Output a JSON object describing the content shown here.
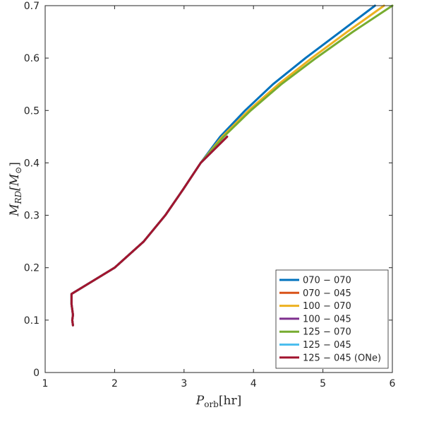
{
  "chart_data": {
    "type": "line",
    "xlabel": {
      "main": "P",
      "sub": "orb",
      "unit": "[hr]"
    },
    "ylabel": {
      "main": "M",
      "sub": "RD",
      "unit_open": "[M",
      "unit_sym": "⊙",
      "unit_close": "]"
    },
    "xlim": [
      1,
      6
    ],
    "ylim": [
      0,
      0.7
    ],
    "xticks": [
      1,
      2,
      3,
      4,
      5,
      6
    ],
    "yticks": [
      0,
      0.1,
      0.2,
      0.3,
      0.4,
      0.5,
      0.6,
      0.7
    ],
    "xtick_labels": [
      "1",
      "2",
      "3",
      "4",
      "5",
      "6"
    ],
    "ytick_labels": [
      "0",
      "0.1",
      "0.2",
      "0.3",
      "0.4",
      "0.5",
      "0.6",
      "0.7"
    ],
    "grid": false,
    "legend_position": "bottom-right",
    "series": [
      {
        "name": "070 − 070",
        "color": "#0072BD",
        "x": [
          1.4,
          1.39,
          1.4,
          1.38,
          1.38,
          2.0,
          2.42,
          2.73,
          2.99,
          3.24,
          3.52,
          3.88,
          4.28,
          4.75,
          5.25,
          5.75
        ],
        "y": [
          0.09,
          0.1,
          0.11,
          0.13,
          0.15,
          0.2,
          0.25,
          0.3,
          0.35,
          0.4,
          0.45,
          0.5,
          0.55,
          0.6,
          0.65,
          0.7
        ]
      },
      {
        "name": "070 − 045",
        "color": "#D95319",
        "x": [
          1.4,
          1.39,
          1.4,
          1.38,
          1.38,
          2.0,
          2.42,
          2.73,
          2.99,
          3.24,
          3.62
        ],
        "y": [
          0.09,
          0.1,
          0.11,
          0.13,
          0.15,
          0.2,
          0.25,
          0.3,
          0.35,
          0.4,
          0.45
        ]
      },
      {
        "name": "100 − 070",
        "color": "#EDB120",
        "x": [
          1.4,
          1.39,
          1.4,
          1.38,
          1.38,
          2.0,
          2.42,
          2.73,
          2.99,
          3.24,
          3.55,
          3.93,
          4.36,
          4.84,
          5.35,
          5.88
        ],
        "y": [
          0.09,
          0.1,
          0.11,
          0.13,
          0.15,
          0.2,
          0.25,
          0.3,
          0.35,
          0.4,
          0.45,
          0.5,
          0.55,
          0.6,
          0.65,
          0.7
        ]
      },
      {
        "name": "100 − 045",
        "color": "#7E2F8E",
        "x": [
          1.4,
          1.39,
          1.4,
          1.38,
          1.38,
          2.0,
          2.42,
          2.73,
          2.99,
          3.24,
          3.62
        ],
        "y": [
          0.09,
          0.1,
          0.11,
          0.13,
          0.15,
          0.2,
          0.25,
          0.3,
          0.35,
          0.4,
          0.45
        ]
      },
      {
        "name": "125 − 070",
        "color": "#77AC30",
        "x": [
          1.4,
          1.39,
          1.4,
          1.38,
          1.38,
          2.0,
          2.42,
          2.73,
          2.99,
          3.24,
          3.57,
          3.96,
          4.4,
          4.9,
          5.43,
          6.0
        ],
        "y": [
          0.09,
          0.1,
          0.11,
          0.13,
          0.15,
          0.2,
          0.25,
          0.3,
          0.35,
          0.4,
          0.45,
          0.5,
          0.55,
          0.6,
          0.65,
          0.7
        ]
      },
      {
        "name": "125 − 045",
        "color": "#4DBEEE",
        "x": [
          1.4,
          1.39,
          1.4,
          1.38,
          1.38,
          2.0,
          2.42,
          2.73,
          2.99,
          3.24,
          3.62
        ],
        "y": [
          0.09,
          0.1,
          0.11,
          0.13,
          0.15,
          0.2,
          0.25,
          0.3,
          0.35,
          0.4,
          0.45
        ]
      },
      {
        "name": "125 − 045 (ONe)",
        "color": "#A2142F",
        "x": [
          1.4,
          1.39,
          1.4,
          1.38,
          1.38,
          2.0,
          2.42,
          2.73,
          2.99,
          3.24,
          3.62
        ],
        "y": [
          0.09,
          0.1,
          0.11,
          0.13,
          0.15,
          0.2,
          0.25,
          0.3,
          0.35,
          0.4,
          0.45
        ]
      }
    ]
  }
}
